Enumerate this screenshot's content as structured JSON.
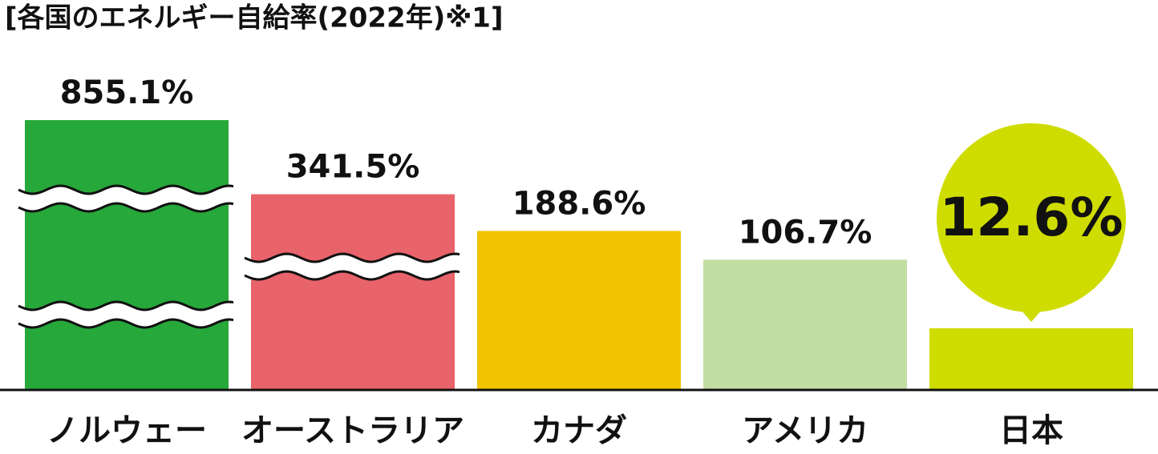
{
  "chart_data": {
    "type": "bar",
    "title": "[各国のエネルギー自給率(2022年)※1]",
    "categories": [
      "ノルウェー",
      "オーストラリア",
      "カナダ",
      "アメリカ",
      "日本"
    ],
    "values": [
      855.1,
      341.5,
      188.6,
      106.7,
      12.6
    ],
    "value_labels": [
      "855.1%",
      "341.5%",
      "188.6%",
      "106.7%",
      "12.6%"
    ],
    "colors": [
      "#27a83b",
      "#e8636a",
      "#f0c400",
      "#c0dda2",
      "#cfdc00"
    ],
    "highlight_color": "#e00012"
  }
}
